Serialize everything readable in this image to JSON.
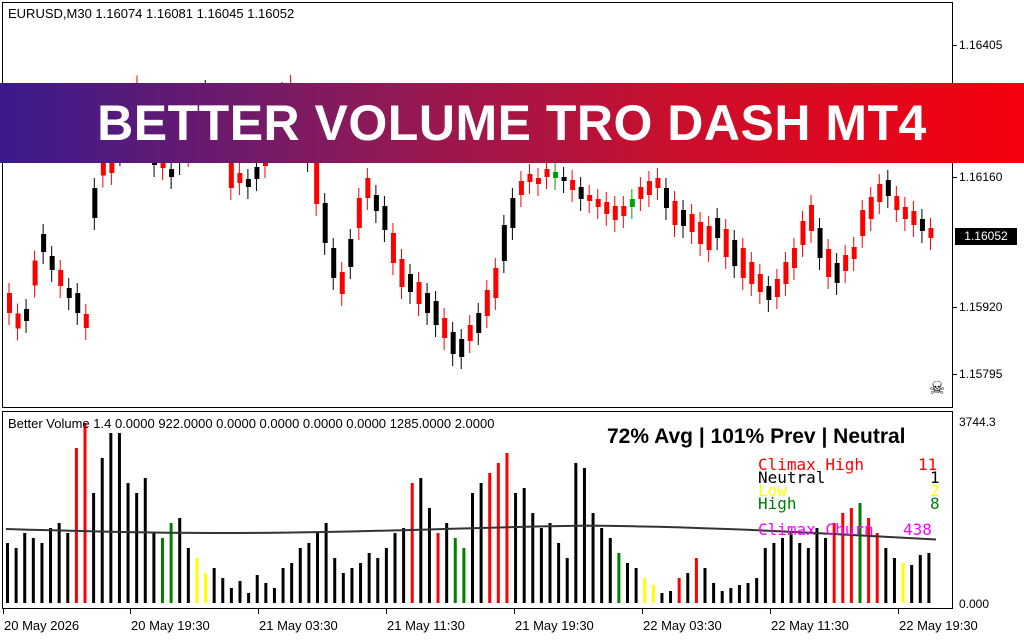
{
  "symbol_info": "EURUSD,M30  1.16074 1.16081 1.16045 1.16052",
  "banner_title": "BETTER VOLUME TRO DASH MT4",
  "price_axis": {
    "labels": [
      "1.16405",
      "1.16160",
      "1.15920",
      "1.15795"
    ],
    "current_price": "1.16052"
  },
  "volume_axis": {
    "top": "3744.3",
    "bottom": "0.000"
  },
  "volume_header": "Better Volume 1.4 0.0000 922.0000 0.0000 0.0000 0.0000 0.0000 1285.0000 2.0000",
  "volume_summary": "72% Avg | 101% Prev | Neutral",
  "legend": [
    {
      "label": "Climax High",
      "value": "11",
      "color": "#ff0000"
    },
    {
      "label": "Neutral",
      "value": "1",
      "color": "#000000"
    },
    {
      "label": "Low",
      "value": "2",
      "color": "#ffff00"
    },
    {
      "label": "High",
      "value": "8",
      "color": "#008000"
    },
    {
      "label": "Climax Churn",
      "value": "438",
      "color": "#ff00ff"
    }
  ],
  "time_labels": [
    "20 May 2026",
    "20 May 19:30",
    "21 May 03:30",
    "21 May 11:30",
    "21 May 19:30",
    "22 May 03:30",
    "22 May 11:30",
    "22 May 19:30"
  ],
  "colors": {
    "bull": "#000000",
    "bear": "#ff0000",
    "doji": "#00a000",
    "volume_neutral": "#000000",
    "volume_climax": "#ff0000",
    "volume_high": "#008000",
    "volume_low": "#ffff00",
    "average_line": "#333333"
  },
  "icons": {
    "skull": "skull-icon"
  }
}
